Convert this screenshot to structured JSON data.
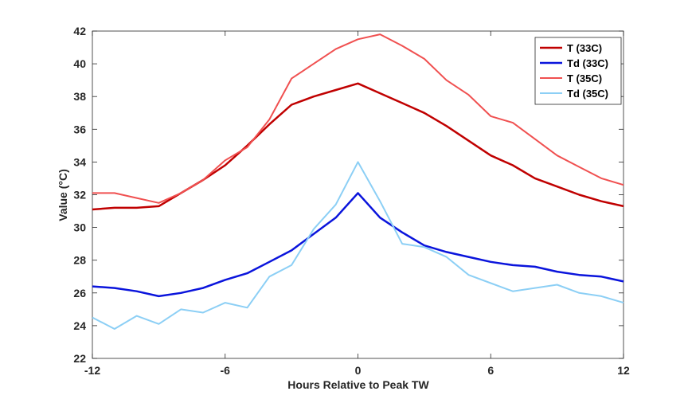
{
  "chart_data": {
    "type": "line",
    "xlabel": "Hours Relative to Peak TW",
    "ylabel": "Value (°C)",
    "xlim": [
      -12,
      12
    ],
    "ylim": [
      22,
      42
    ],
    "x_ticks": [
      -12,
      -6,
      0,
      6,
      12
    ],
    "y_ticks": [
      22,
      24,
      26,
      28,
      30,
      32,
      34,
      36,
      38,
      40,
      42
    ],
    "grid": false,
    "legend_position": "top-right",
    "x": [
      -12,
      -11,
      -10,
      -9,
      -8,
      -7,
      -6,
      -5,
      -4,
      -3,
      -2,
      -1,
      0,
      1,
      2,
      3,
      4,
      5,
      6,
      7,
      8,
      9,
      10,
      11,
      12
    ],
    "series": [
      {
        "name": "T (33C)",
        "color": "#c00000",
        "values": [
          31.1,
          31.2,
          31.2,
          31.3,
          32.1,
          32.9,
          33.8,
          35.0,
          36.3,
          37.5,
          38.0,
          38.4,
          38.8,
          38.2,
          37.6,
          37.0,
          36.2,
          35.3,
          34.4,
          33.8,
          33.0,
          32.5,
          32.0,
          31.6,
          31.3
        ],
        "width": 2.5
      },
      {
        "name": "Td (33C)",
        "color": "#0a14dc",
        "values": [
          26.4,
          26.3,
          26.1,
          25.8,
          26.0,
          26.3,
          26.8,
          27.2,
          27.9,
          28.6,
          29.6,
          30.6,
          32.1,
          30.6,
          29.7,
          28.9,
          28.5,
          28.2,
          27.9,
          27.7,
          27.6,
          27.3,
          27.1,
          27.0,
          26.7
        ],
        "width": 2.5
      },
      {
        "name": "T (35C)",
        "color": "#f05050",
        "values": [
          32.1,
          32.1,
          31.8,
          31.5,
          32.1,
          32.9,
          34.1,
          34.9,
          36.6,
          39.1,
          40.0,
          40.9,
          41.5,
          41.8,
          41.1,
          40.3,
          39.0,
          38.1,
          36.8,
          36.4,
          35.4,
          34.4,
          33.7,
          33.0,
          32.6
        ],
        "width": 2
      },
      {
        "name": "Td (35C)",
        "color": "#8ccff5",
        "values": [
          24.5,
          23.8,
          24.6,
          24.1,
          25.0,
          24.8,
          25.4,
          25.1,
          27.0,
          27.7,
          29.9,
          31.4,
          34.0,
          31.6,
          29.0,
          28.8,
          28.2,
          27.1,
          26.6,
          26.1,
          26.3,
          26.5,
          26.0,
          25.8,
          25.4
        ],
        "width": 2
      }
    ]
  }
}
